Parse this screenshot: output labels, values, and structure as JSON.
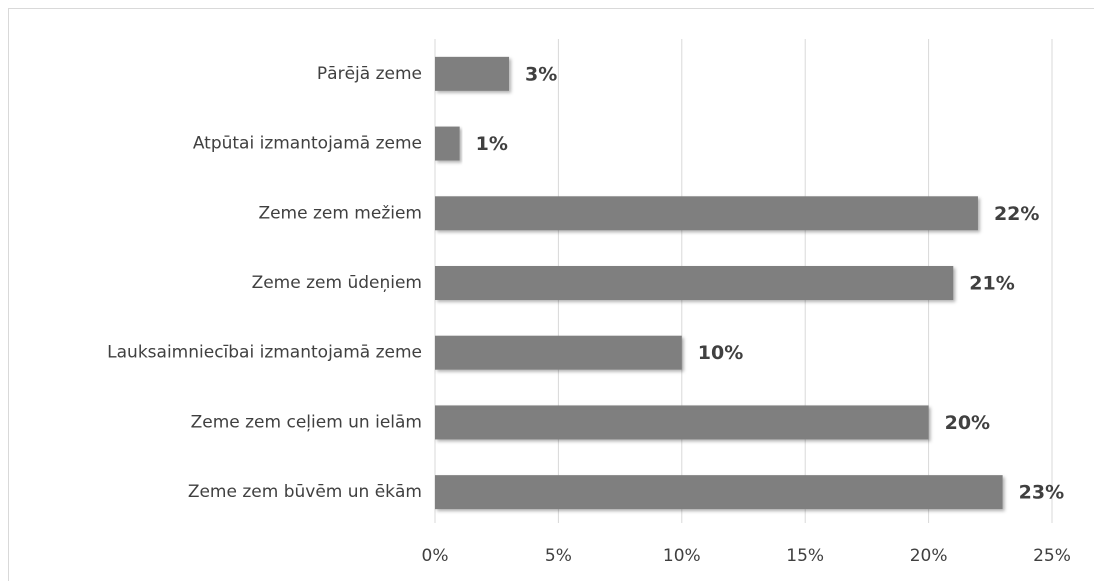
{
  "chart_data": {
    "type": "hbar",
    "categories": [
      "Pārējā zeme",
      "Atpūtai izmantojamā zeme",
      "Zeme zem mežiem ",
      "Zeme zem ūdeņiem",
      "Lauksaimniecībai izmantojamā zeme",
      "Zeme zem ceļiem un ielām",
      "Zeme zem būvēm un ēkām"
    ],
    "values": [
      3,
      1,
      22,
      21,
      10,
      20,
      23
    ],
    "value_labels": [
      "3%",
      "1%",
      "22%",
      "21%",
      "10%",
      "20%",
      "23%"
    ],
    "color": "#7f7f7f",
    "xlim": [
      0,
      25
    ],
    "xticks": [
      {
        "value": 0,
        "label": "0%"
      },
      {
        "value": 5,
        "label": "5%"
      },
      {
        "value": 10,
        "label": "10%"
      },
      {
        "value": 15,
        "label": "15%"
      },
      {
        "value": 20,
        "label": "20%"
      },
      {
        "value": 25,
        "label": "25%"
      }
    ],
    "grid": true
  }
}
